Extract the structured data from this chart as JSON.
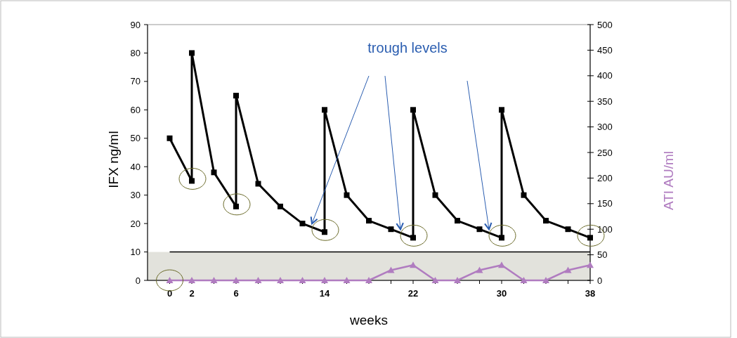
{
  "chart_data": {
    "type": "line",
    "xlabel": "weeks",
    "ylabel": "IFX ng/ml",
    "y2label": "ATI AU/ml",
    "xlim": [
      -2,
      38
    ],
    "xticks": [
      0,
      2,
      {
        "value": 4,
        "label": null
      },
      6,
      {
        "value": 8,
        "label": null
      },
      {
        "value": 10,
        "label": null
      },
      {
        "value": 12,
        "label": null
      },
      14,
      {
        "value": 16,
        "label": null
      },
      {
        "value": 18,
        "label": null
      },
      {
        "value": 20,
        "label": null
      },
      22,
      {
        "value": 24,
        "label": null
      },
      {
        "value": 26,
        "label": null
      },
      {
        "value": 28,
        "label": null
      },
      30,
      {
        "value": 32,
        "label": null
      },
      {
        "value": 34,
        "label": null
      },
      {
        "value": 36,
        "label": null
      },
      38
    ],
    "ylim": [
      0,
      90
    ],
    "yticks": [
      0,
      10,
      20,
      30,
      40,
      50,
      60,
      70,
      80,
      90
    ],
    "y2lim": [
      0,
      500
    ],
    "y2ticks": [
      0,
      50,
      100,
      150,
      200,
      250,
      300,
      350,
      400,
      450,
      500
    ],
    "grid": false,
    "line_style": "solid",
    "bands": [
      {
        "axis": "y",
        "from": 0,
        "to": 10,
        "color": "#e2e2dc"
      }
    ],
    "ref_lines": [
      {
        "axis": "y",
        "value": 10,
        "color": "#000000"
      }
    ],
    "annotations": [
      "trough levels"
    ],
    "series": [
      {
        "color": "#000000",
        "marker": "square",
        "x": [
          0,
          2,
          2,
          4,
          6,
          6,
          8,
          10,
          12,
          14,
          14,
          16,
          18,
          20,
          22,
          22,
          24,
          26,
          28,
          30,
          30,
          32,
          34,
          36,
          38
        ],
        "values": [
          50,
          35,
          80,
          38,
          26,
          65,
          34,
          26,
          20,
          17,
          60,
          30,
          21,
          18,
          15,
          60,
          30,
          21,
          18,
          15,
          60,
          30,
          21,
          18,
          15
        ]
      },
      {
        "color": "#b07cc0",
        "marker": "triangle",
        "axis": "y2",
        "x": [
          0,
          2,
          4,
          6,
          8,
          10,
          12,
          14,
          16,
          18,
          20,
          22,
          24,
          26,
          28,
          30,
          32,
          34,
          36,
          38
        ],
        "values": [
          0,
          0,
          0,
          0,
          0,
          0,
          0,
          0,
          0,
          0,
          20,
          30,
          0,
          0,
          20,
          30,
          0,
          0,
          20,
          30
        ]
      }
    ]
  }
}
